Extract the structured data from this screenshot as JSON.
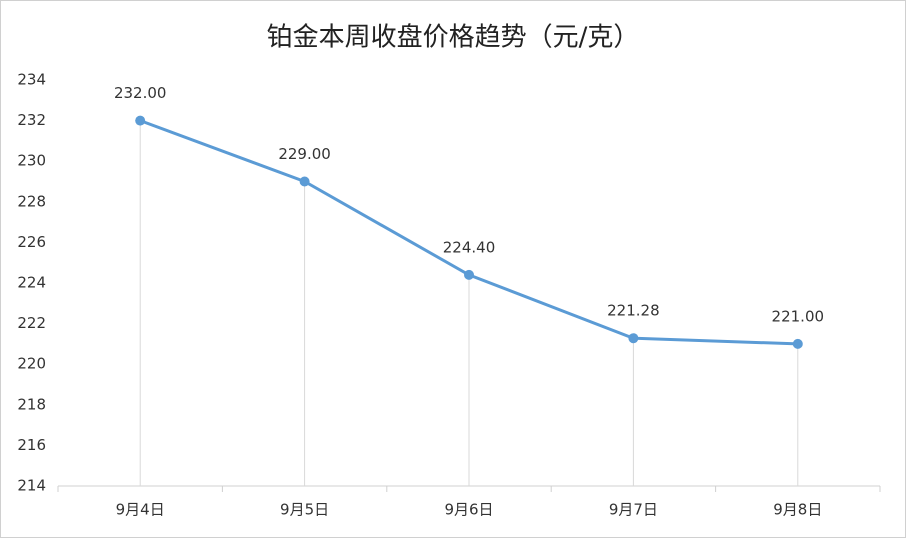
{
  "chart_data": {
    "type": "line",
    "title": "铂金本周收盘价格趋势（元/克）",
    "categories": [
      "9月4日",
      "9月5日",
      "9月6日",
      "9月7日",
      "9月8日"
    ],
    "values": [
      232,
      229,
      224.4,
      221.28,
      221
    ],
    "value_labels": [
      "232.00",
      "229.00",
      "224.40",
      "221.28",
      "221.00"
    ],
    "color": "#5b9bd5",
    "ylim": [
      214,
      234
    ],
    "yticks": [
      214,
      216,
      218,
      220,
      222,
      224,
      226,
      228,
      230,
      232,
      234
    ],
    "drop_lines": true
  }
}
